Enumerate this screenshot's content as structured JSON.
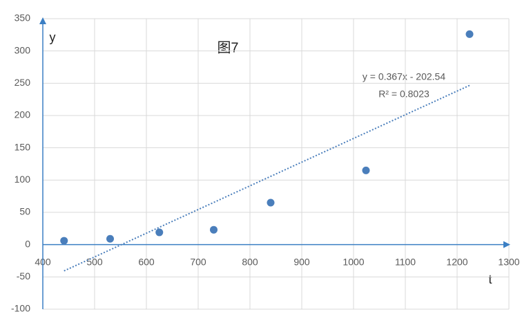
{
  "chart_data": {
    "type": "scatter",
    "title": "图7",
    "x_label": "t",
    "y_label": "y",
    "x": [
      441,
      530,
      625,
      730,
      840,
      1024,
      1224
    ],
    "values": [
      6,
      9,
      19,
      23,
      65,
      115,
      326
    ],
    "color": "#4a7ebb",
    "axis_color": "#3b7fc4",
    "trend_color": "#4a7ebb",
    "xlim": [
      400,
      1300
    ],
    "xticks": [
      400,
      500,
      600,
      700,
      800,
      900,
      1000,
      1100,
      1200,
      1300
    ],
    "ylim": [
      -100,
      350
    ],
    "yticks": [
      -100,
      -50,
      0,
      50,
      100,
      150,
      200,
      250,
      300,
      350
    ],
    "grid": true,
    "trendline": {
      "slope": 0.367,
      "intercept": -202.54,
      "equation": "y = 0.367x - 202.54",
      "r_squared_label": "R² = 0.8023"
    }
  }
}
